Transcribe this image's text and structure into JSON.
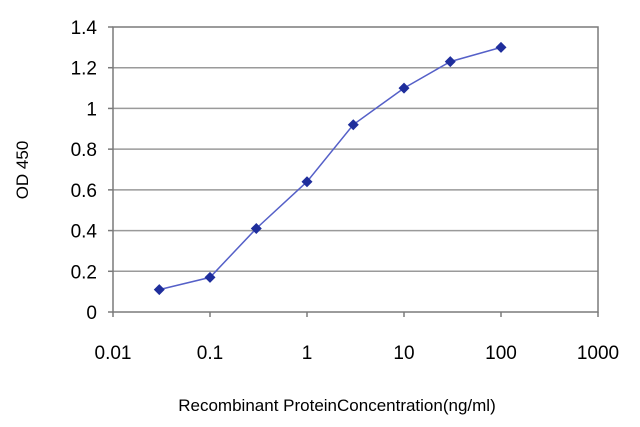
{
  "chart_data": {
    "type": "line",
    "title": "",
    "xlabel": "Recombinant ProteinConcentration(ng/ml)",
    "ylabel": "OD 450",
    "x_scale": "log",
    "xlim": [
      0.01,
      1000
    ],
    "ylim": [
      0,
      1.4
    ],
    "x_ticks": [
      "0.01",
      "0.1",
      "1",
      "10",
      "100",
      "1000"
    ],
    "y_ticks": [
      "0",
      "0.2",
      "0.4",
      "0.6",
      "0.8",
      "1",
      "1.2",
      "1.4"
    ],
    "grid": "horizontal",
    "legend": "none",
    "series": [
      {
        "x": [
          0.03,
          0.1,
          0.3,
          1,
          3,
          10,
          30,
          100
        ],
        "y": [
          0.11,
          0.17,
          0.41,
          0.64,
          0.92,
          1.1,
          1.23,
          1.3
        ],
        "color": "#1f2e9c",
        "marker": "diamond"
      }
    ],
    "colors": {
      "line": "#5560c8",
      "marker": "#1f2e9c",
      "grid": "#9a9a9a",
      "axis": "#7a7a7a"
    }
  }
}
